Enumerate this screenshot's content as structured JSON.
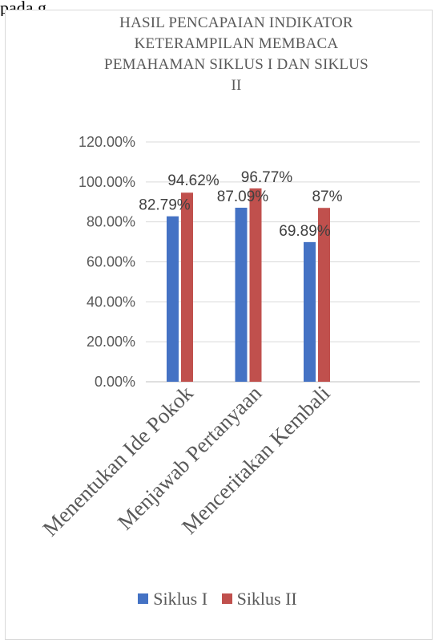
{
  "top_fragment": "pada g",
  "chart_data": {
    "type": "bar",
    "title_lines": [
      "HASIL PENCAPAIAN INDIKATOR",
      "KETERAMPILAN MEMBACA",
      "PEMAHAMAN SIKLUS I DAN SIKLUS",
      "II"
    ],
    "categories": [
      "Menentukan Ide Pokok",
      "Menjawab Pertanyaan",
      "Menceritakan Kembali"
    ],
    "series": [
      {
        "name": "Siklus I",
        "color": "#4472c4",
        "values": [
          82.79,
          87.09,
          69.89
        ],
        "labels": [
          "82.79%",
          "87.09%",
          "69.89%"
        ]
      },
      {
        "name": "Siklus II",
        "color": "#c0504d",
        "values": [
          94.62,
          96.77,
          87
        ],
        "labels": [
          "94.62%",
          "96.77%",
          "87%"
        ]
      }
    ],
    "ylim": [
      0,
      120
    ],
    "yticks": [
      0,
      20,
      40,
      60,
      80,
      100,
      120
    ],
    "ytick_labels": [
      "0.00%",
      "20.00%",
      "40.00%",
      "60.00%",
      "80.00%",
      "100.00%",
      "120.00%"
    ],
    "grid": true,
    "legend_position": "bottom"
  }
}
